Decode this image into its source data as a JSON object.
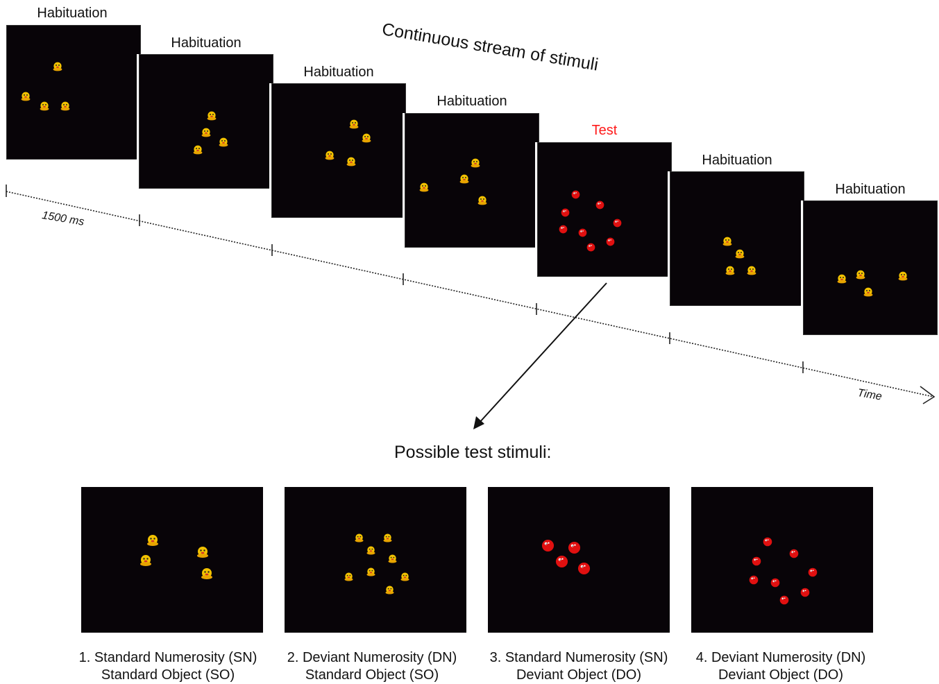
{
  "stream_title": "Continuous stream of stimuli",
  "interval_label": "1500 ms",
  "time_label": "Time",
  "possible_title": "Possible test stimuli:",
  "colors": {
    "test_label": "#ff1a1a",
    "frame_bg": "#080408",
    "duck": "#f2c200",
    "ball": "#e01010"
  },
  "sequence": [
    {
      "label": "Habituation",
      "stimulus": "duck",
      "count": 4
    },
    {
      "label": "Habituation",
      "stimulus": "duck",
      "count": 4
    },
    {
      "label": "Habituation",
      "stimulus": "duck",
      "count": 4
    },
    {
      "label": "Habituation",
      "stimulus": "duck",
      "count": 4
    },
    {
      "label": "Test",
      "stimulus": "ball",
      "count": 8
    },
    {
      "label": "Habituation",
      "stimulus": "duck",
      "count": 4
    },
    {
      "label": "Habituation",
      "stimulus": "duck",
      "count": 4
    }
  ],
  "test_stimuli": [
    {
      "line1": "1. Standard Numerosity (SN)",
      "line2": "Standard Object (SO)",
      "stimulus": "duck",
      "count": 4
    },
    {
      "line1": "2. Deviant Numerosity (DN)",
      "line2": "Standard Object (SO)",
      "stimulus": "duck",
      "count": 8
    },
    {
      "line1": "3. Standard Numerosity (SN)",
      "line2": "Deviant Object (DO)",
      "stimulus": "ball",
      "count": 4
    },
    {
      "line1": "4. Deviant Numerosity (DN)",
      "line2": "Deviant Object (DO)",
      "stimulus": "ball",
      "count": 8
    }
  ]
}
